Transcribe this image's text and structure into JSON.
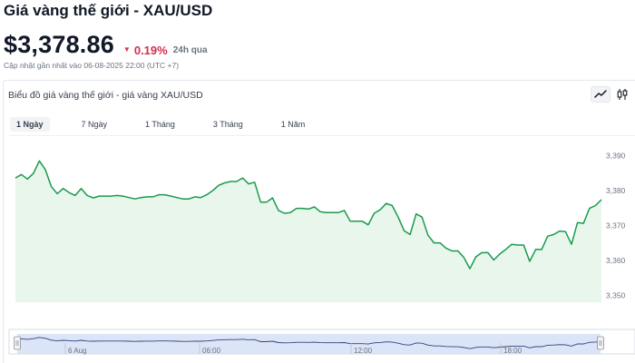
{
  "header": {
    "title": "Giá vàng thế giới - XAU/USD",
    "price": "$3,378.86",
    "change": "0.19%",
    "change_period": "24h qua",
    "updated": "Cập nhật gần nhất vào 06-08-2025 22:00 (UTC +7)"
  },
  "chart_panel": {
    "heading": "Biểu đồ giá vàng thế giới - giá vàng XAU/USD",
    "tabs": [
      {
        "label": "1 Ngày",
        "active": true
      },
      {
        "label": "7 Ngày",
        "active": false
      },
      {
        "label": "1 Tháng",
        "active": false
      },
      {
        "label": "3 Tháng",
        "active": false
      },
      {
        "label": "1 Năm",
        "active": false
      }
    ],
    "tools": [
      "line-chart-icon",
      "candlestick-icon"
    ]
  },
  "colors": {
    "line": "#1a9a4d",
    "area": "#e9f6ec",
    "down": "#d32f4f",
    "navigator_fill": "#c9d6f2"
  },
  "chart_data": {
    "type": "area",
    "ylim": [
      3348,
      3393
    ],
    "yticks": [
      3350,
      3360,
      3370,
      3380,
      3390
    ],
    "ytick_labels": [
      "3,350",
      "3,360",
      "3,370",
      "3,380",
      "3,390"
    ],
    "x_labels": [
      "6 Aug",
      "06:00",
      "12:00",
      "18:00"
    ],
    "values": [
      3383.6,
      3384.6,
      3383.3,
      3384.9,
      3388.5,
      3386.0,
      3381.1,
      3379.1,
      3380.6,
      3379.4,
      3378.6,
      3380.6,
      3378.6,
      3377.9,
      3378.4,
      3378.4,
      3378.4,
      3378.6,
      3378.4,
      3378.0,
      3377.6,
      3378.0,
      3378.2,
      3378.2,
      3378.8,
      3378.8,
      3378.4,
      3378.0,
      3377.6,
      3377.6,
      3378.2,
      3378.0,
      3378.8,
      3380.0,
      3381.5,
      3382.2,
      3382.6,
      3382.6,
      3383.6,
      3381.9,
      3382.4,
      3376.7,
      3376.7,
      3377.9,
      3374.3,
      3373.5,
      3373.7,
      3374.9,
      3374.9,
      3374.7,
      3375.3,
      3373.9,
      3373.7,
      3373.7,
      3373.7,
      3374.3,
      3371.2,
      3371.2,
      3371.2,
      3370.2,
      3373.5,
      3374.5,
      3376.3,
      3375.7,
      3372.4,
      3368.5,
      3367.4,
      3373.3,
      3372.4,
      3367.2,
      3365.0,
      3365.0,
      3363.5,
      3362.7,
      3362.7,
      3360.8,
      3357.6,
      3361.0,
      3362.2,
      3362.2,
      3360.1,
      3361.8,
      3363.1,
      3364.6,
      3364.4,
      3364.4,
      3359.7,
      3363.1,
      3363.1,
      3366.9,
      3367.4,
      3368.4,
      3368.2,
      3364.6,
      3370.8,
      3370.6,
      3374.9,
      3375.7,
      3377.4
    ]
  }
}
